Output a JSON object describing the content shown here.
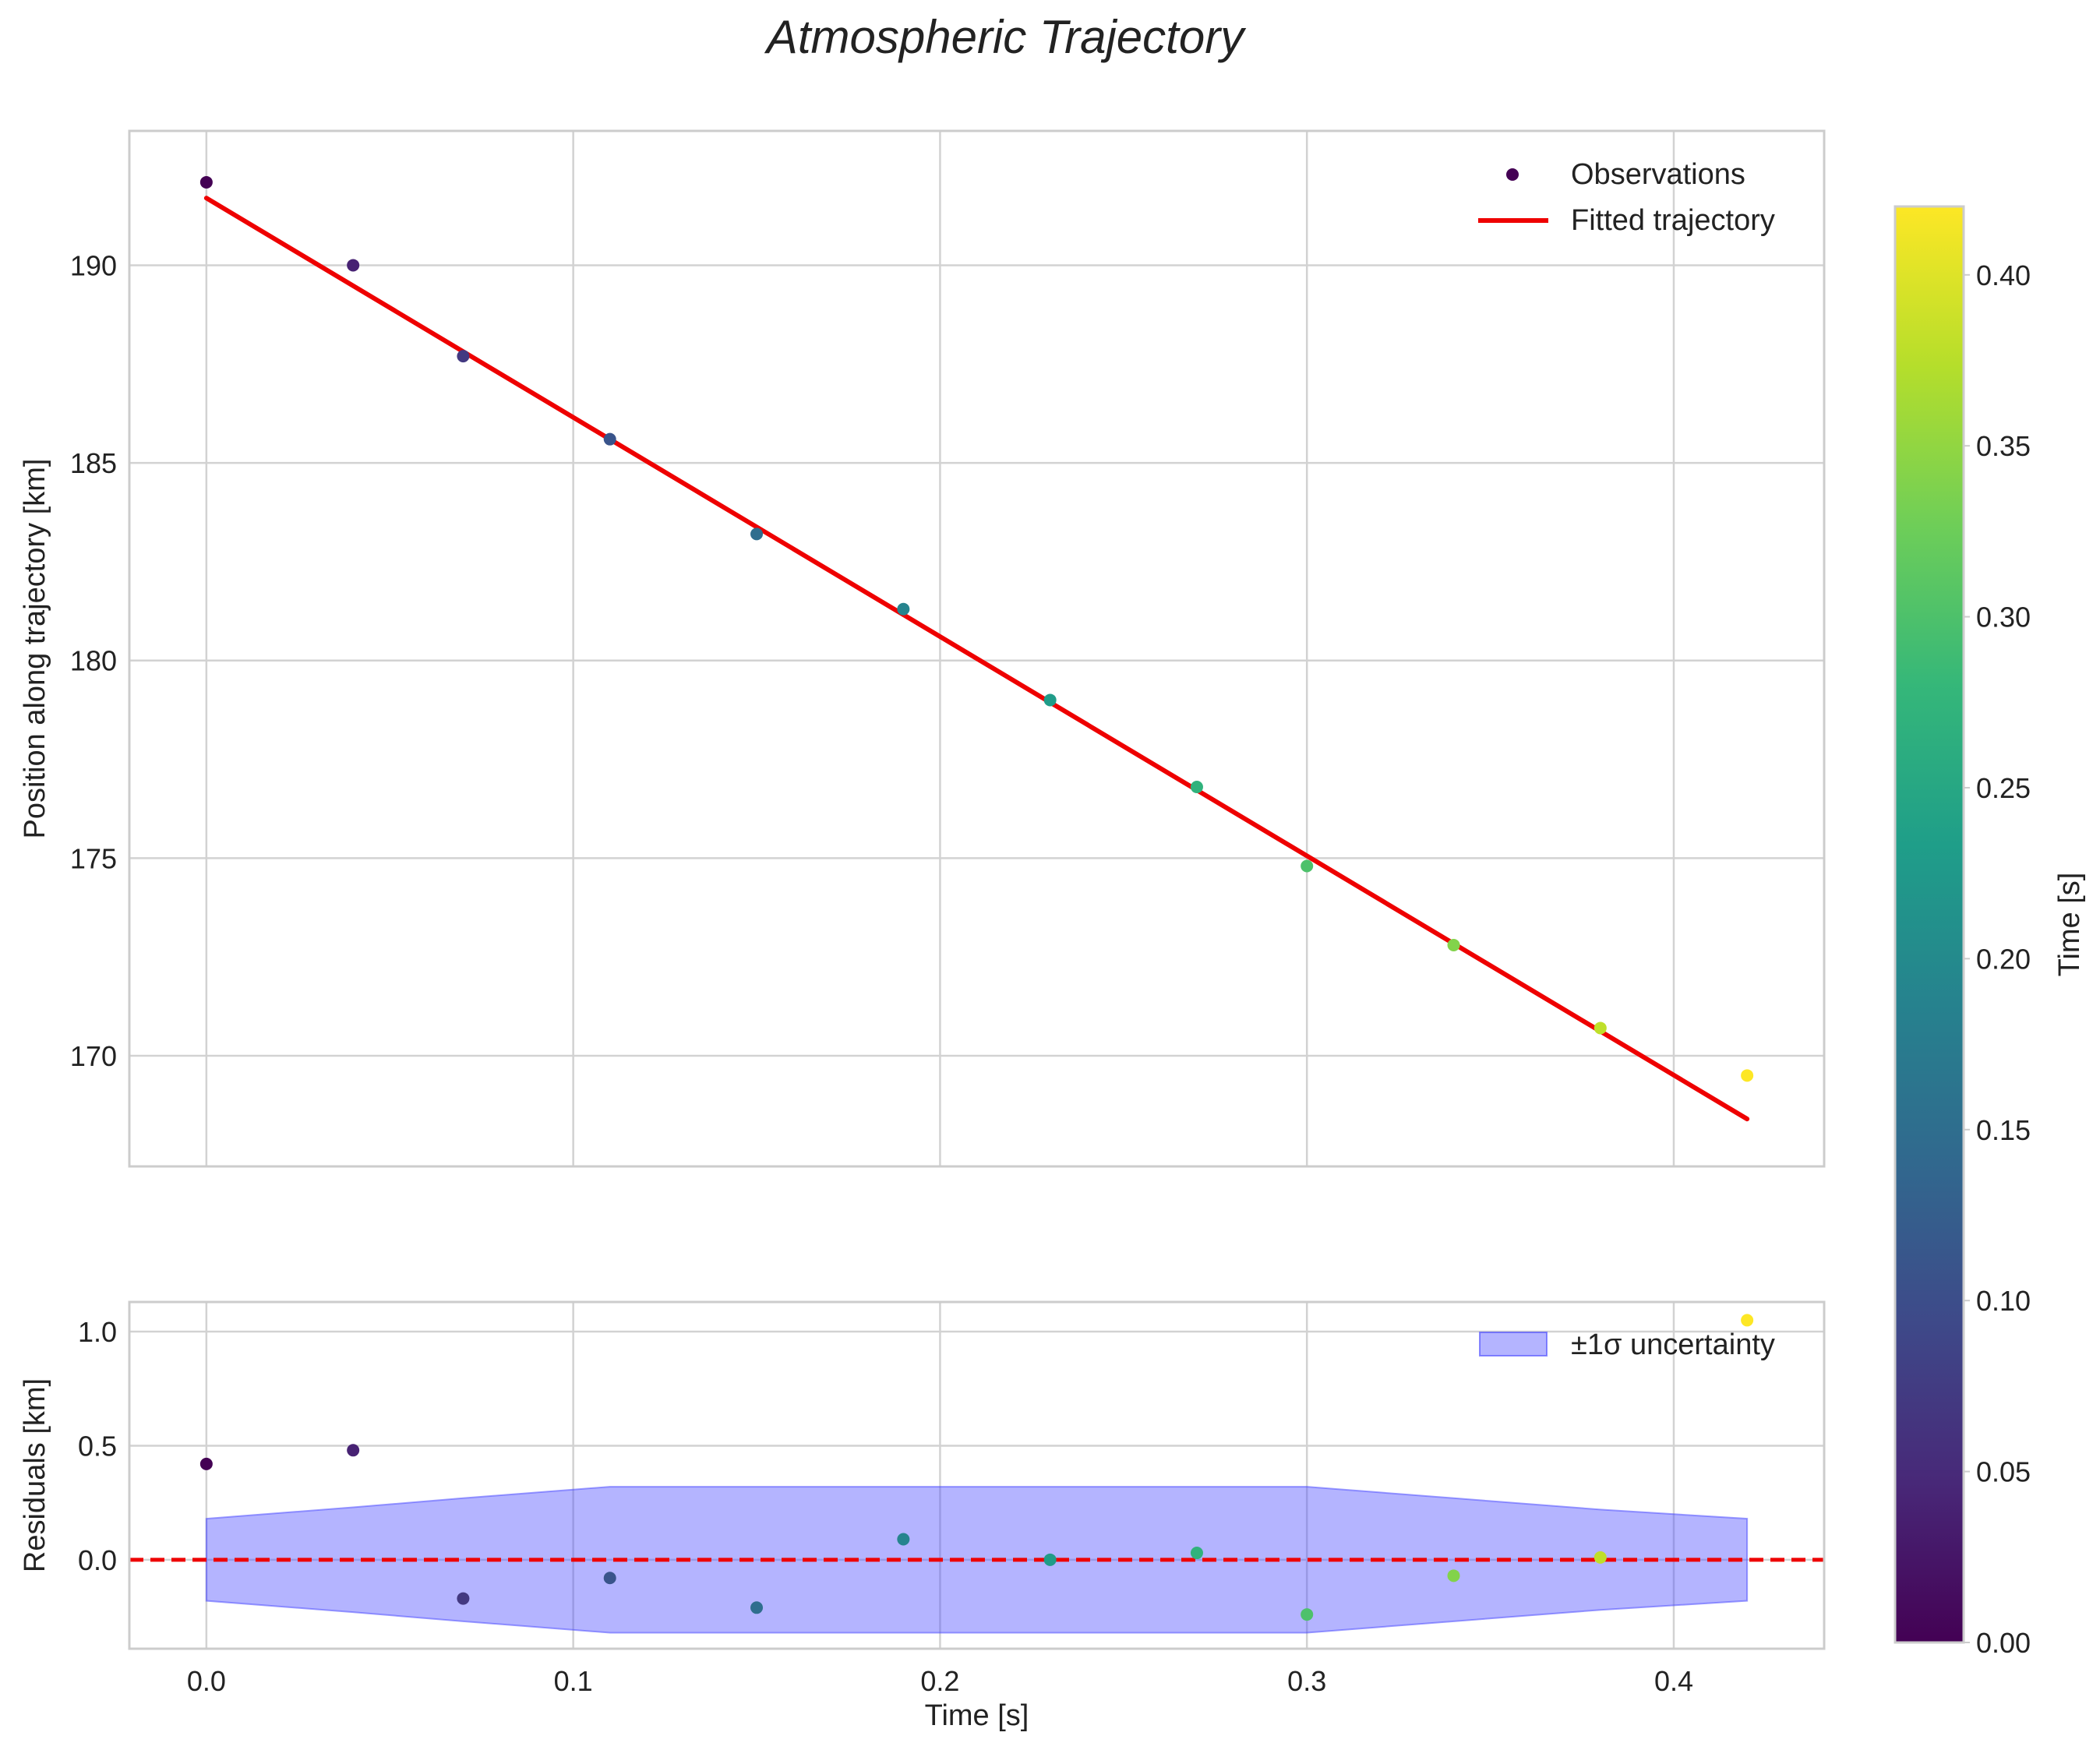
{
  "chart_data": [
    {
      "id": "main",
      "type": "scatter",
      "title": "Atmospheric Trajectory",
      "xlabel": "",
      "ylabel": "Position along trajectory [km]",
      "xlim": [
        -0.021,
        0.441
      ],
      "ylim": [
        167.2,
        193.4
      ],
      "xticks": [
        0.0,
        0.1,
        0.2,
        0.3,
        0.4
      ],
      "yticks": [
        170,
        175,
        180,
        185,
        190
      ],
      "ytick_labels": [
        "170",
        "175",
        "180",
        "185",
        "190"
      ],
      "grid": true,
      "legend_position": "top-right",
      "series": [
        {
          "name": "Observations",
          "kind": "scatter",
          "color_by": "time",
          "x": [
            0.0,
            0.04,
            0.07,
            0.11,
            0.15,
            0.19,
            0.23,
            0.27,
            0.3,
            0.34,
            0.38,
            0.42
          ],
          "y": [
            192.1,
            190.0,
            187.7,
            185.6,
            183.2,
            181.3,
            179.0,
            176.8,
            174.8,
            172.8,
            170.7,
            169.5
          ]
        },
        {
          "name": "Fitted trajectory",
          "kind": "line",
          "color": "#ee0000",
          "x": [
            0.0,
            0.42
          ],
          "y": [
            191.7,
            168.4
          ]
        }
      ]
    },
    {
      "id": "residuals",
      "type": "scatter",
      "xlabel": "Time [s]",
      "ylabel": "Residuals [km]",
      "xlim": [
        -0.021,
        0.441
      ],
      "ylim": [
        -0.39,
        1.13
      ],
      "xticks": [
        0.0,
        0.1,
        0.2,
        0.3,
        0.4
      ],
      "xtick_labels": [
        "0.0",
        "0.1",
        "0.2",
        "0.3",
        "0.4"
      ],
      "yticks": [
        0.0,
        0.5,
        1.0
      ],
      "ytick_labels": [
        "0.0",
        "0.5",
        "1.0"
      ],
      "grid": true,
      "legend_position": "top-right",
      "reference_line": {
        "y": 0.0,
        "style": "dashed",
        "color": "#ee0000"
      },
      "band": {
        "name": "±1σ uncertainty",
        "color": "#4444ff",
        "x": [
          0.0,
          0.04,
          0.07,
          0.11,
          0.15,
          0.19,
          0.23,
          0.27,
          0.3,
          0.34,
          0.38,
          0.42
        ],
        "upper": [
          0.18,
          0.23,
          0.27,
          0.32,
          0.32,
          0.32,
          0.32,
          0.32,
          0.32,
          0.27,
          0.22,
          0.18
        ],
        "lower": [
          -0.18,
          -0.23,
          -0.27,
          -0.32,
          -0.32,
          -0.32,
          -0.32,
          -0.32,
          -0.32,
          -0.27,
          -0.22,
          -0.18
        ]
      },
      "series": [
        {
          "name": "Residuals",
          "kind": "scatter",
          "color_by": "time",
          "x": [
            0.0,
            0.04,
            0.07,
            0.11,
            0.15,
            0.19,
            0.23,
            0.27,
            0.3,
            0.34,
            0.38,
            0.42
          ],
          "y": [
            0.42,
            0.48,
            -0.17,
            -0.08,
            -0.21,
            0.09,
            0.0,
            0.03,
            -0.24,
            -0.07,
            0.01,
            1.05
          ]
        }
      ]
    }
  ],
  "colorbar": {
    "label": "Time [s]",
    "range": [
      0.0,
      0.42
    ],
    "ticks": [
      0.0,
      0.05,
      0.1,
      0.15,
      0.2,
      0.25,
      0.3,
      0.35,
      0.4
    ],
    "tick_labels": [
      "0.00",
      "0.05",
      "0.10",
      "0.15",
      "0.20",
      "0.25",
      "0.30",
      "0.35",
      "0.40"
    ],
    "colormap": "viridis"
  }
}
